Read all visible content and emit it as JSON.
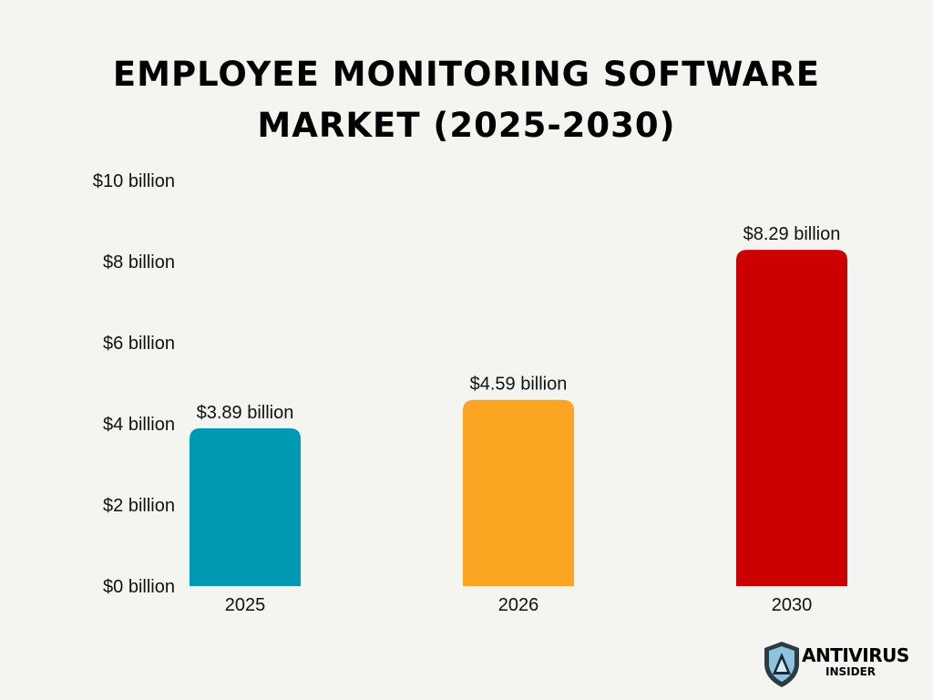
{
  "chart_data": {
    "type": "bar",
    "title_lines": [
      "Employee Monitoring Software",
      "Market (2025-2030)"
    ],
    "categories": [
      "2025",
      "2026",
      "2030"
    ],
    "values": [
      3.89,
      4.59,
      8.29
    ],
    "value_labels": [
      "$3.89 billion",
      "$4.59 billion",
      "$8.29 billion"
    ],
    "colors": [
      "#0099b3",
      "#fca523",
      "#cc0000"
    ],
    "y_ticks": [
      0,
      2,
      4,
      6,
      8,
      10
    ],
    "y_tick_labels": [
      "$0 billion",
      "$2 billion",
      "$4 billion",
      "$6 billion",
      "$8 billion",
      "$10 billion"
    ],
    "ylim": [
      0,
      10
    ],
    "xlabel": "",
    "ylabel": "",
    "grid": false,
    "legend": "none"
  },
  "logo": {
    "line1": "ANTIVIRUS",
    "line2": "INSIDER",
    "icon": "shield-icon"
  }
}
